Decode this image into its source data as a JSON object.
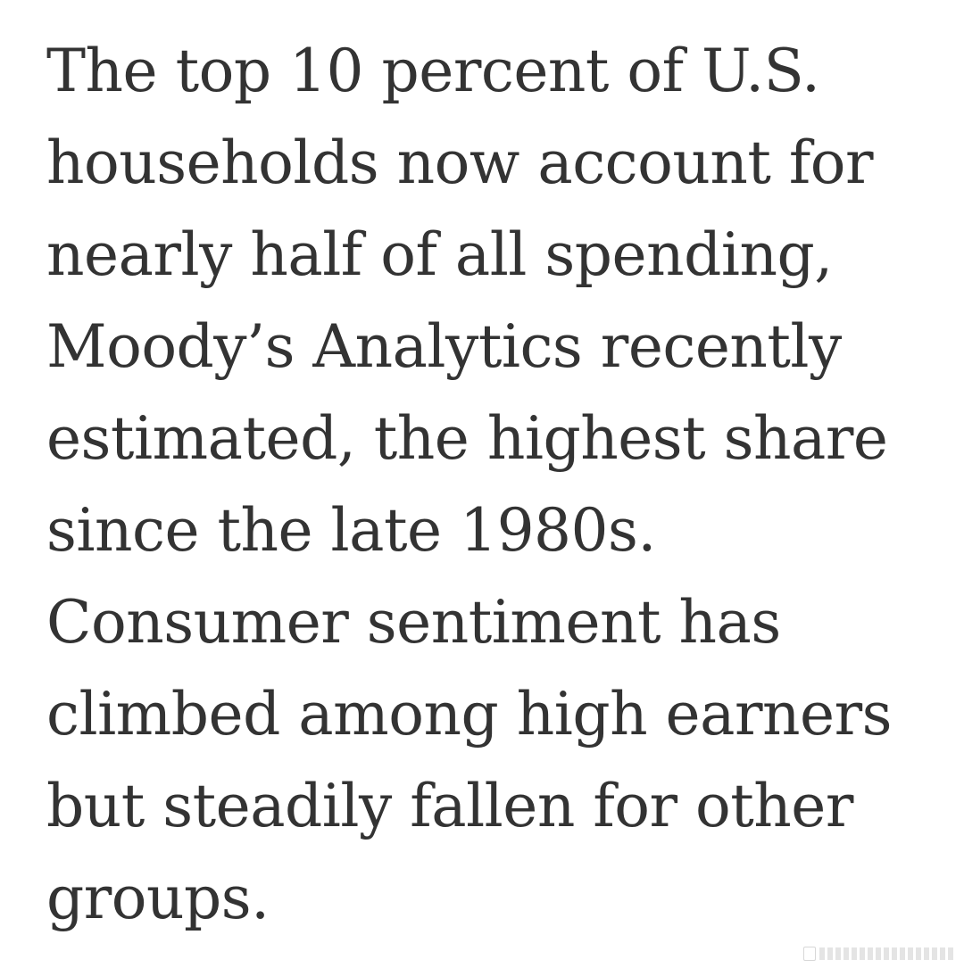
{
  "article": {
    "lines": [
      "The top 10 percent of U.S.",
      "households now account for",
      "nearly half of all spending,",
      "Moody’s Analytics recently",
      "estimated, the highest share",
      "since the late 1980s.",
      "Consumer sentiment has",
      "climbed among high earners",
      "but steadily fallen for other",
      "groups."
    ]
  },
  "colors": {
    "text": "#333333",
    "background": "#ffffff"
  },
  "icons": {
    "watermark": "watermark-logo-icon"
  }
}
